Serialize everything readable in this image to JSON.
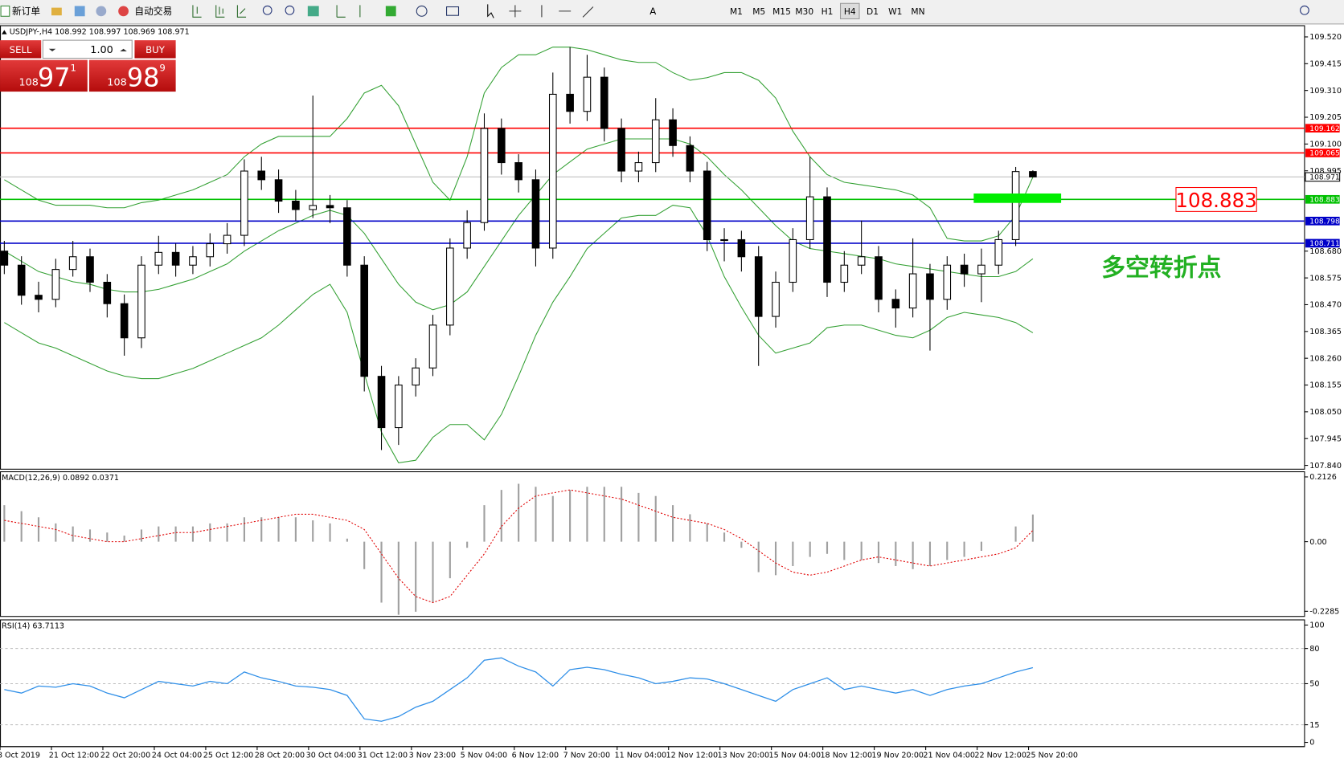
{
  "toolbar": {
    "buttons": [
      "新订单",
      "自动交易"
    ],
    "timeframes": [
      "M1",
      "M5",
      "M15",
      "M30",
      "H1",
      "H4",
      "D1",
      "W1",
      "MN"
    ],
    "active_timeframe": "H4"
  },
  "trade_panel": {
    "sell": "SELL",
    "lots": "1.00",
    "buy": "BUY",
    "sell_price": {
      "big": "108",
      "main": "97",
      "small": "1"
    },
    "buy_price": {
      "big": "108",
      "main": "98",
      "small": "9"
    }
  },
  "chart_data": [
    {
      "type": "candlestick",
      "title": "USDJPY-,H4  108.992 108.997 108.969 108.971",
      "open": [
        108.68,
        108.625,
        108.507,
        108.491,
        108.608,
        108.658,
        108.558,
        108.474,
        108.34,
        108.625,
        108.675,
        108.625,
        108.658,
        108.709,
        108.742,
        108.994,
        108.96,
        108.876,
        108.843,
        108.859,
        108.85,
        108.625,
        108.189,
        107.988,
        108.155,
        108.222,
        108.39,
        108.692,
        108.792,
        109.161,
        109.027,
        108.96,
        108.692,
        109.295,
        109.228,
        109.362,
        109.161,
        108.994,
        109.027,
        109.195,
        109.094,
        108.994,
        108.725,
        108.725,
        108.658,
        108.424,
        108.558,
        108.725,
        108.893,
        108.558,
        108.625,
        108.658,
        108.491,
        108.457,
        108.591,
        108.491,
        108.625,
        108.591,
        108.625,
        108.725,
        108.992
      ],
      "high": [
        108.72,
        108.66,
        108.56,
        108.65,
        108.72,
        108.69,
        108.59,
        108.51,
        108.66,
        108.74,
        108.71,
        108.7,
        108.75,
        108.79,
        109.04,
        109.05,
        109.0,
        108.92,
        109.29,
        108.9,
        108.88,
        108.66,
        108.23,
        108.19,
        108.26,
        108.43,
        108.73,
        108.84,
        109.22,
        109.2,
        109.06,
        109.0,
        109.38,
        109.48,
        109.45,
        109.4,
        109.2,
        109.07,
        109.28,
        109.24,
        109.13,
        109.03,
        108.77,
        108.76,
        108.7,
        108.6,
        108.77,
        109.05,
        108.93,
        108.68,
        108.8,
        108.7,
        108.53,
        108.73,
        108.63,
        108.66,
        108.67,
        108.69,
        108.76,
        109.01,
        108.997
      ],
      "low": [
        108.59,
        108.47,
        108.44,
        108.46,
        108.58,
        108.52,
        108.42,
        108.27,
        108.3,
        108.59,
        108.58,
        108.59,
        108.62,
        108.67,
        108.7,
        108.92,
        108.83,
        108.8,
        108.81,
        108.79,
        108.58,
        108.13,
        107.9,
        107.92,
        108.11,
        108.19,
        108.35,
        108.65,
        108.76,
        108.98,
        108.91,
        108.62,
        108.65,
        109.18,
        109.19,
        109.11,
        108.95,
        108.95,
        108.99,
        109.05,
        108.95,
        108.68,
        108.64,
        108.6,
        108.23,
        108.38,
        108.52,
        108.69,
        108.5,
        108.52,
        108.59,
        108.44,
        108.38,
        108.42,
        108.29,
        108.45,
        108.54,
        108.48,
        108.59,
        108.7,
        108.969
      ],
      "close": [
        108.625,
        108.507,
        108.491,
        108.608,
        108.658,
        108.558,
        108.474,
        108.34,
        108.625,
        108.675,
        108.625,
        108.658,
        108.709,
        108.742,
        108.994,
        108.96,
        108.876,
        108.843,
        108.859,
        108.85,
        108.625,
        108.189,
        107.988,
        108.155,
        108.222,
        108.39,
        108.692,
        108.792,
        109.161,
        109.027,
        108.96,
        108.692,
        109.295,
        109.228,
        109.362,
        109.161,
        108.994,
        109.027,
        109.195,
        109.094,
        108.994,
        108.725,
        108.725,
        108.658,
        108.424,
        108.558,
        108.725,
        108.893,
        108.558,
        108.625,
        108.658,
        108.491,
        108.457,
        108.591,
        108.491,
        108.625,
        108.591,
        108.625,
        108.725,
        108.992,
        108.971
      ],
      "bands": {
        "color": "#33a033",
        "upper": [
          108.96,
          108.92,
          108.88,
          108.86,
          108.86,
          108.86,
          108.85,
          108.85,
          108.87,
          108.88,
          108.9,
          108.92,
          108.95,
          108.98,
          109.05,
          109.1,
          109.13,
          109.13,
          109.13,
          109.13,
          109.2,
          109.3,
          109.33,
          109.25,
          109.1,
          108.95,
          108.88,
          109.05,
          109.3,
          109.4,
          109.45,
          109.45,
          109.48,
          109.48,
          109.47,
          109.45,
          109.43,
          109.42,
          109.42,
          109.38,
          109.35,
          109.36,
          109.38,
          109.38,
          109.35,
          109.28,
          109.15,
          109.05,
          108.98,
          108.95,
          108.94,
          108.93,
          108.92,
          108.9,
          108.85,
          108.73,
          108.72,
          108.72,
          108.74,
          108.82,
          108.97
        ],
        "middle": [
          108.68,
          108.64,
          108.6,
          108.58,
          108.56,
          108.55,
          108.53,
          108.52,
          108.52,
          108.53,
          108.55,
          108.57,
          108.6,
          108.63,
          108.68,
          108.72,
          108.76,
          108.79,
          108.82,
          108.84,
          108.82,
          108.75,
          108.65,
          108.55,
          108.48,
          108.45,
          108.47,
          108.52,
          108.62,
          108.72,
          108.82,
          108.9,
          108.98,
          109.03,
          109.08,
          109.1,
          109.12,
          109.12,
          109.12,
          109.12,
          109.1,
          109.05,
          108.98,
          108.92,
          108.85,
          108.78,
          108.72,
          108.69,
          108.68,
          108.67,
          108.66,
          108.65,
          108.63,
          108.62,
          108.61,
          108.6,
          108.59,
          108.58,
          108.58,
          108.6,
          108.65
        ],
        "lower": [
          108.4,
          108.36,
          108.32,
          108.3,
          108.27,
          108.24,
          108.21,
          108.19,
          108.18,
          108.18,
          108.2,
          108.22,
          108.25,
          108.28,
          108.31,
          108.34,
          108.39,
          108.45,
          108.51,
          108.55,
          108.44,
          108.2,
          107.97,
          107.85,
          107.86,
          107.95,
          108.0,
          108.0,
          107.94,
          108.04,
          108.19,
          108.35,
          108.48,
          108.58,
          108.69,
          108.75,
          108.81,
          108.82,
          108.82,
          108.86,
          108.85,
          108.74,
          108.58,
          108.46,
          108.35,
          108.28,
          108.3,
          108.32,
          108.38,
          108.39,
          108.39,
          108.37,
          108.35,
          108.34,
          108.37,
          108.42,
          108.44,
          108.43,
          108.42,
          108.4,
          108.36
        ]
      },
      "ylim": [
        107.825,
        109.564
      ],
      "yticks": [
        {
          "value": 109.52,
          "label": "109.520"
        },
        109.415,
        {
          "value": 109.31,
          "label": "109.310"
        },
        109.205,
        {
          "value": 109.1,
          "label": "109.100"
        },
        108.995,
        {
          "value": 108.68,
          "label": "108.680"
        },
        108.575,
        {
          "value": 108.47,
          "label": "108.470"
        },
        108.365,
        {
          "value": 108.26,
          "label": "108.260"
        },
        108.155,
        {
          "value": 108.05,
          "label": "108.050"
        },
        107.945,
        {
          "value": 107.84,
          "label": "107.840"
        }
      ],
      "levels": [
        {
          "value": 109.162,
          "color": "#ff0000"
        },
        {
          "value": 109.065,
          "color": "#ff0000"
        },
        {
          "value": 108.883,
          "color": "#00c000"
        },
        {
          "value": 108.798,
          "color": "#0000c8"
        },
        {
          "value": 108.711,
          "color": "#0000c8"
        }
      ],
      "last_price": 108.971,
      "annotation": "多空转折点",
      "x_labels": [
        "8 Oct 2019",
        "21 Oct 12:00",
        "22 Oct 20:00",
        "24 Oct 04:00",
        "25 Oct 12:00",
        "28 Oct 20:00",
        "30 Oct 04:00",
        "31 Oct 12:00",
        "3 Nov 23:00",
        "5 Nov 04:00",
        "6 Nov 12:00",
        "7 Nov 20:00",
        "11 Nov 04:00",
        "12 Nov 12:00",
        "13 Nov 20:00",
        "15 Nov 04:00",
        "18 Nov 12:00",
        "19 Nov 20:00",
        "21 Nov 04:00",
        "22 Nov 12:00",
        "25 Nov 20:00"
      ]
    },
    {
      "type": "macd",
      "title": "MACD(12,26,9) 0.0892 0.0371",
      "color": "#a0a0a0",
      "signal_color": "#e00000",
      "values": [
        0.12,
        0.1,
        0.08,
        0.06,
        0.05,
        0.04,
        0.03,
        0.02,
        0.04,
        0.05,
        0.05,
        0.05,
        0.06,
        0.06,
        0.08,
        0.08,
        0.08,
        0.08,
        0.07,
        0.06,
        0.01,
        -0.09,
        -0.2,
        -0.24,
        -0.23,
        -0.2,
        -0.12,
        -0.02,
        0.12,
        0.17,
        0.19,
        0.18,
        0.15,
        0.17,
        0.18,
        0.18,
        0.18,
        0.16,
        0.15,
        0.12,
        0.09,
        0.06,
        0.03,
        -0.02,
        -0.1,
        -0.11,
        -0.08,
        -0.05,
        -0.04,
        -0.06,
        -0.06,
        -0.07,
        -0.08,
        -0.09,
        -0.08,
        -0.06,
        -0.05,
        -0.03,
        0.0,
        0.05,
        0.0892
      ],
      "signal": [
        0.07,
        0.06,
        0.05,
        0.04,
        0.02,
        0.01,
        0.0,
        0.0,
        0.01,
        0.02,
        0.03,
        0.03,
        0.04,
        0.05,
        0.06,
        0.07,
        0.08,
        0.09,
        0.09,
        0.08,
        0.07,
        0.04,
        -0.04,
        -0.12,
        -0.18,
        -0.2,
        -0.18,
        -0.11,
        -0.04,
        0.05,
        0.11,
        0.15,
        0.16,
        0.17,
        0.16,
        0.15,
        0.14,
        0.12,
        0.1,
        0.08,
        0.07,
        0.06,
        0.04,
        0.01,
        -0.03,
        -0.07,
        -0.1,
        -0.11,
        -0.1,
        -0.08,
        -0.06,
        -0.05,
        -0.06,
        -0.07,
        -0.08,
        -0.07,
        -0.06,
        -0.05,
        -0.04,
        -0.02,
        0.0371
      ],
      "ylim": [
        -0.2454,
        0.2295
      ],
      "yticks": [
        0.2126,
        {
          "value": 0,
          "label": "0.00"
        },
        -0.2285
      ]
    },
    {
      "type": "line",
      "title": "RSI(14) 63.7113",
      "color": "#2f8fe8",
      "values": [
        45,
        42,
        48,
        47,
        50,
        48,
        42,
        38,
        45,
        52,
        50,
        48,
        52,
        50,
        60,
        55,
        52,
        48,
        47,
        45,
        40,
        20,
        18,
        22,
        30,
        35,
        45,
        55,
        70,
        72,
        65,
        60,
        48,
        62,
        64,
        62,
        58,
        55,
        50,
        52,
        55,
        54,
        50,
        45,
        40,
        35,
        45,
        50,
        55,
        45,
        48,
        45,
        42,
        45,
        40,
        45,
        48,
        50,
        55,
        60,
        63.7113
      ],
      "ylim": [
        -3.6,
        104.4
      ],
      "yticks": [
        100,
        80,
        50,
        15,
        0
      ]
    }
  ]
}
